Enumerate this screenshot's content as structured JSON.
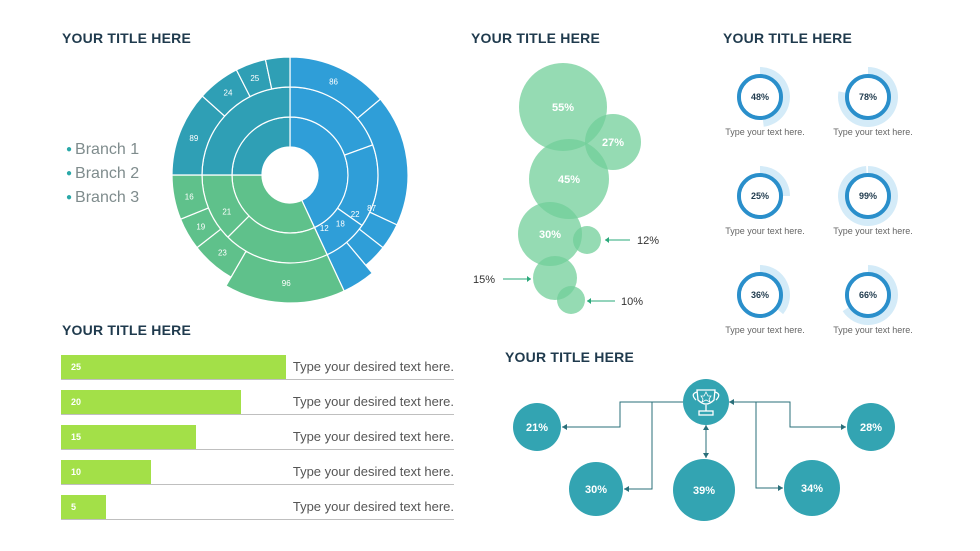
{
  "titles": {
    "sunburst": "YOUR TITLE HERE",
    "bubbles": "YOUR TITLE HERE",
    "gauges": "YOUR TITLE HERE",
    "bars": "YOUR TITLE HERE",
    "flow": "YOUR TITLE HERE"
  },
  "legend": [
    "Branch 1",
    "Branch 2",
    "Branch 3"
  ],
  "colors": {
    "blue": "#2f9ed8",
    "green": "#5fc18b",
    "teal": "#2f9fb5",
    "bubble": "#72cf9a",
    "lime": "#a3e048",
    "flow": "#33a4b2",
    "gauge_light": "#d4ebf8",
    "gauge_dark": "#2a8fcb"
  },
  "chart_data": [
    {
      "type": "sunburst",
      "outer_labels": [
        "86",
        "87",
        "22",
        "18",
        "12",
        "96",
        "23",
        "19",
        "16",
        "89",
        "24",
        "25"
      ],
      "inner_labels": [
        "21"
      ]
    },
    {
      "type": "scatter",
      "bubbles": [
        {
          "label": "55%"
        },
        {
          "label": "27%"
        },
        {
          "label": "45%"
        },
        {
          "label": "30%"
        },
        {
          "label": "12%"
        },
        {
          "label": "15%"
        },
        {
          "label": "10%"
        }
      ]
    },
    {
      "type": "pie",
      "gauges": [
        {
          "value": 48,
          "label": "48%",
          "caption": "Type your text here."
        },
        {
          "value": 78,
          "label": "78%",
          "caption": "Type your text here."
        },
        {
          "value": 25,
          "label": "25%",
          "caption": "Type your text here."
        },
        {
          "value": 99,
          "label": "99%",
          "caption": "Type your text here."
        },
        {
          "value": 36,
          "label": "36%",
          "caption": "Type your text here."
        },
        {
          "value": 66,
          "label": "66%",
          "caption": "Type your text here."
        }
      ]
    },
    {
      "type": "bar",
      "values": [
        25,
        20,
        15,
        10,
        5
      ],
      "labels": [
        "Type your desired text here.",
        "Type your desired text here.",
        "Type your desired text here.",
        "Type your desired text here.",
        "Type your desired text here."
      ]
    },
    {
      "type": "diagram",
      "nodes": [
        "21%",
        "30%",
        "39%",
        "34%",
        "28%"
      ],
      "center_icon": "trophy-icon"
    }
  ]
}
